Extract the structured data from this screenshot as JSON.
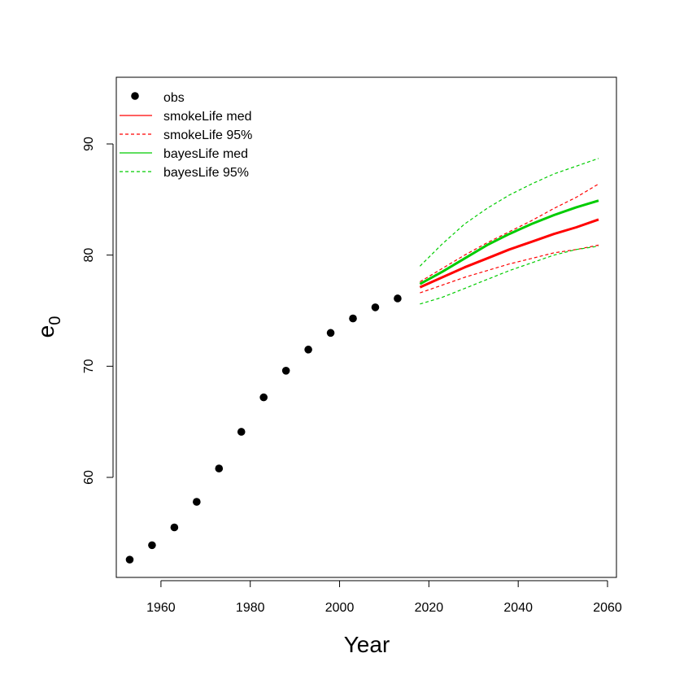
{
  "chart_data": {
    "type": "line",
    "title": "",
    "xlabel": "Year",
    "ylabel_main": "e",
    "ylabel_sub": "0",
    "xlim": [
      1950,
      2062
    ],
    "ylim": [
      51,
      96
    ],
    "xticks": [
      1960,
      1980,
      2000,
      2020,
      2040,
      2060
    ],
    "yticks": [
      60,
      70,
      80,
      90
    ],
    "grid": false,
    "legend_position": "top-left",
    "observed": {
      "name": "obs",
      "color": "#000000",
      "x": [
        1953,
        1958,
        1963,
        1968,
        1973,
        1978,
        1983,
        1988,
        1993,
        1998,
        2003,
        2008,
        2013
      ],
      "y": [
        52.6,
        53.9,
        55.5,
        57.8,
        60.8,
        64.1,
        67.2,
        69.6,
        71.5,
        73.0,
        74.3,
        75.3,
        76.1
      ]
    },
    "series": [
      {
        "name": "smokeLife med",
        "color": "#ff0000",
        "dash": false,
        "x": [
          2018,
          2023,
          2028,
          2033,
          2038,
          2043,
          2048,
          2053,
          2058
        ],
        "y": [
          77.1,
          78.0,
          78.9,
          79.7,
          80.5,
          81.2,
          81.9,
          82.5,
          83.2
        ]
      },
      {
        "name": "smokeLife 95%",
        "color": "#ff0000",
        "dash": true,
        "x": [
          2018,
          2023,
          2028,
          2033,
          2038,
          2043,
          2048,
          2053,
          2058
        ],
        "y": [
          76.6,
          77.3,
          78.0,
          78.6,
          79.2,
          79.7,
          80.2,
          80.5,
          80.9
        ]
      },
      {
        "name": "smokeLife 95% upper",
        "legend": false,
        "color": "#ff0000",
        "dash": true,
        "x": [
          2018,
          2023,
          2028,
          2033,
          2038,
          2043,
          2048,
          2053,
          2058
        ],
        "y": [
          77.6,
          78.8,
          80.0,
          81.1,
          82.1,
          83.1,
          84.2,
          85.2,
          86.4
        ]
      },
      {
        "name": "bayesLife med",
        "color": "#00cc00",
        "dash": false,
        "x": [
          2018,
          2023,
          2028,
          2033,
          2038,
          2043,
          2048,
          2053,
          2058
        ],
        "y": [
          77.4,
          78.5,
          79.7,
          80.9,
          81.9,
          82.8,
          83.6,
          84.3,
          84.9
        ]
      },
      {
        "name": "bayesLife 95%",
        "color": "#00cc00",
        "dash": true,
        "x": [
          2018,
          2023,
          2028,
          2033,
          2038,
          2043,
          2048,
          2053,
          2058
        ],
        "y": [
          75.6,
          76.2,
          77.0,
          77.8,
          78.6,
          79.3,
          80.0,
          80.5,
          80.8
        ]
      },
      {
        "name": "bayesLife 95% upper",
        "legend": false,
        "color": "#00cc00",
        "dash": true,
        "x": [
          2018,
          2023,
          2028,
          2033,
          2038,
          2043,
          2048,
          2053,
          2058
        ],
        "y": [
          79.0,
          81.0,
          82.8,
          84.2,
          85.4,
          86.4,
          87.3,
          88.0,
          88.7
        ]
      }
    ]
  }
}
